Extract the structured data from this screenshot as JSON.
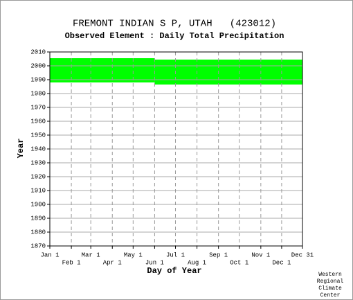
{
  "chart_data": {
    "type": "coverage",
    "title": "FREMONT INDIAN S P, UTAH   (423012)",
    "subtitle": "Observed Element : Daily Total Precipitation",
    "ylabel": "Year",
    "xlabel": "Day of Year",
    "footer": [
      "Western",
      "Regional",
      "Climate",
      "Center"
    ],
    "color": "#00ff00",
    "grid": true,
    "xlim": [
      1,
      365
    ],
    "xticks": [
      {
        "value": 1,
        "label": "Jan 1"
      },
      {
        "value": 32,
        "label": "Feb 1"
      },
      {
        "value": 60,
        "label": "Mar 1"
      },
      {
        "value": 91,
        "label": "Apr 1"
      },
      {
        "value": 121,
        "label": "May 1"
      },
      {
        "value": 152,
        "label": "Jun 1"
      },
      {
        "value": 182,
        "label": "Jul 1"
      },
      {
        "value": 213,
        "label": "Aug 1"
      },
      {
        "value": 244,
        "label": "Sep 1"
      },
      {
        "value": 274,
        "label": "Oct 1"
      },
      {
        "value": 305,
        "label": "Nov 1"
      },
      {
        "value": 335,
        "label": "Dec 1"
      },
      {
        "value": 365,
        "label": "Dec 31"
      }
    ],
    "ylim": [
      1870,
      2010
    ],
    "yticks": [
      1870,
      1880,
      1890,
      1900,
      1910,
      1920,
      1930,
      1940,
      1950,
      1960,
      1970,
      1980,
      1990,
      2000,
      2010
    ],
    "blocks": [
      {
        "days": [
          1,
          152
        ],
        "years": [
          1988,
          2005.5
        ]
      },
      {
        "days": [
          152,
          365
        ],
        "years": [
          1986.5,
          2004.5
        ]
      }
    ]
  }
}
